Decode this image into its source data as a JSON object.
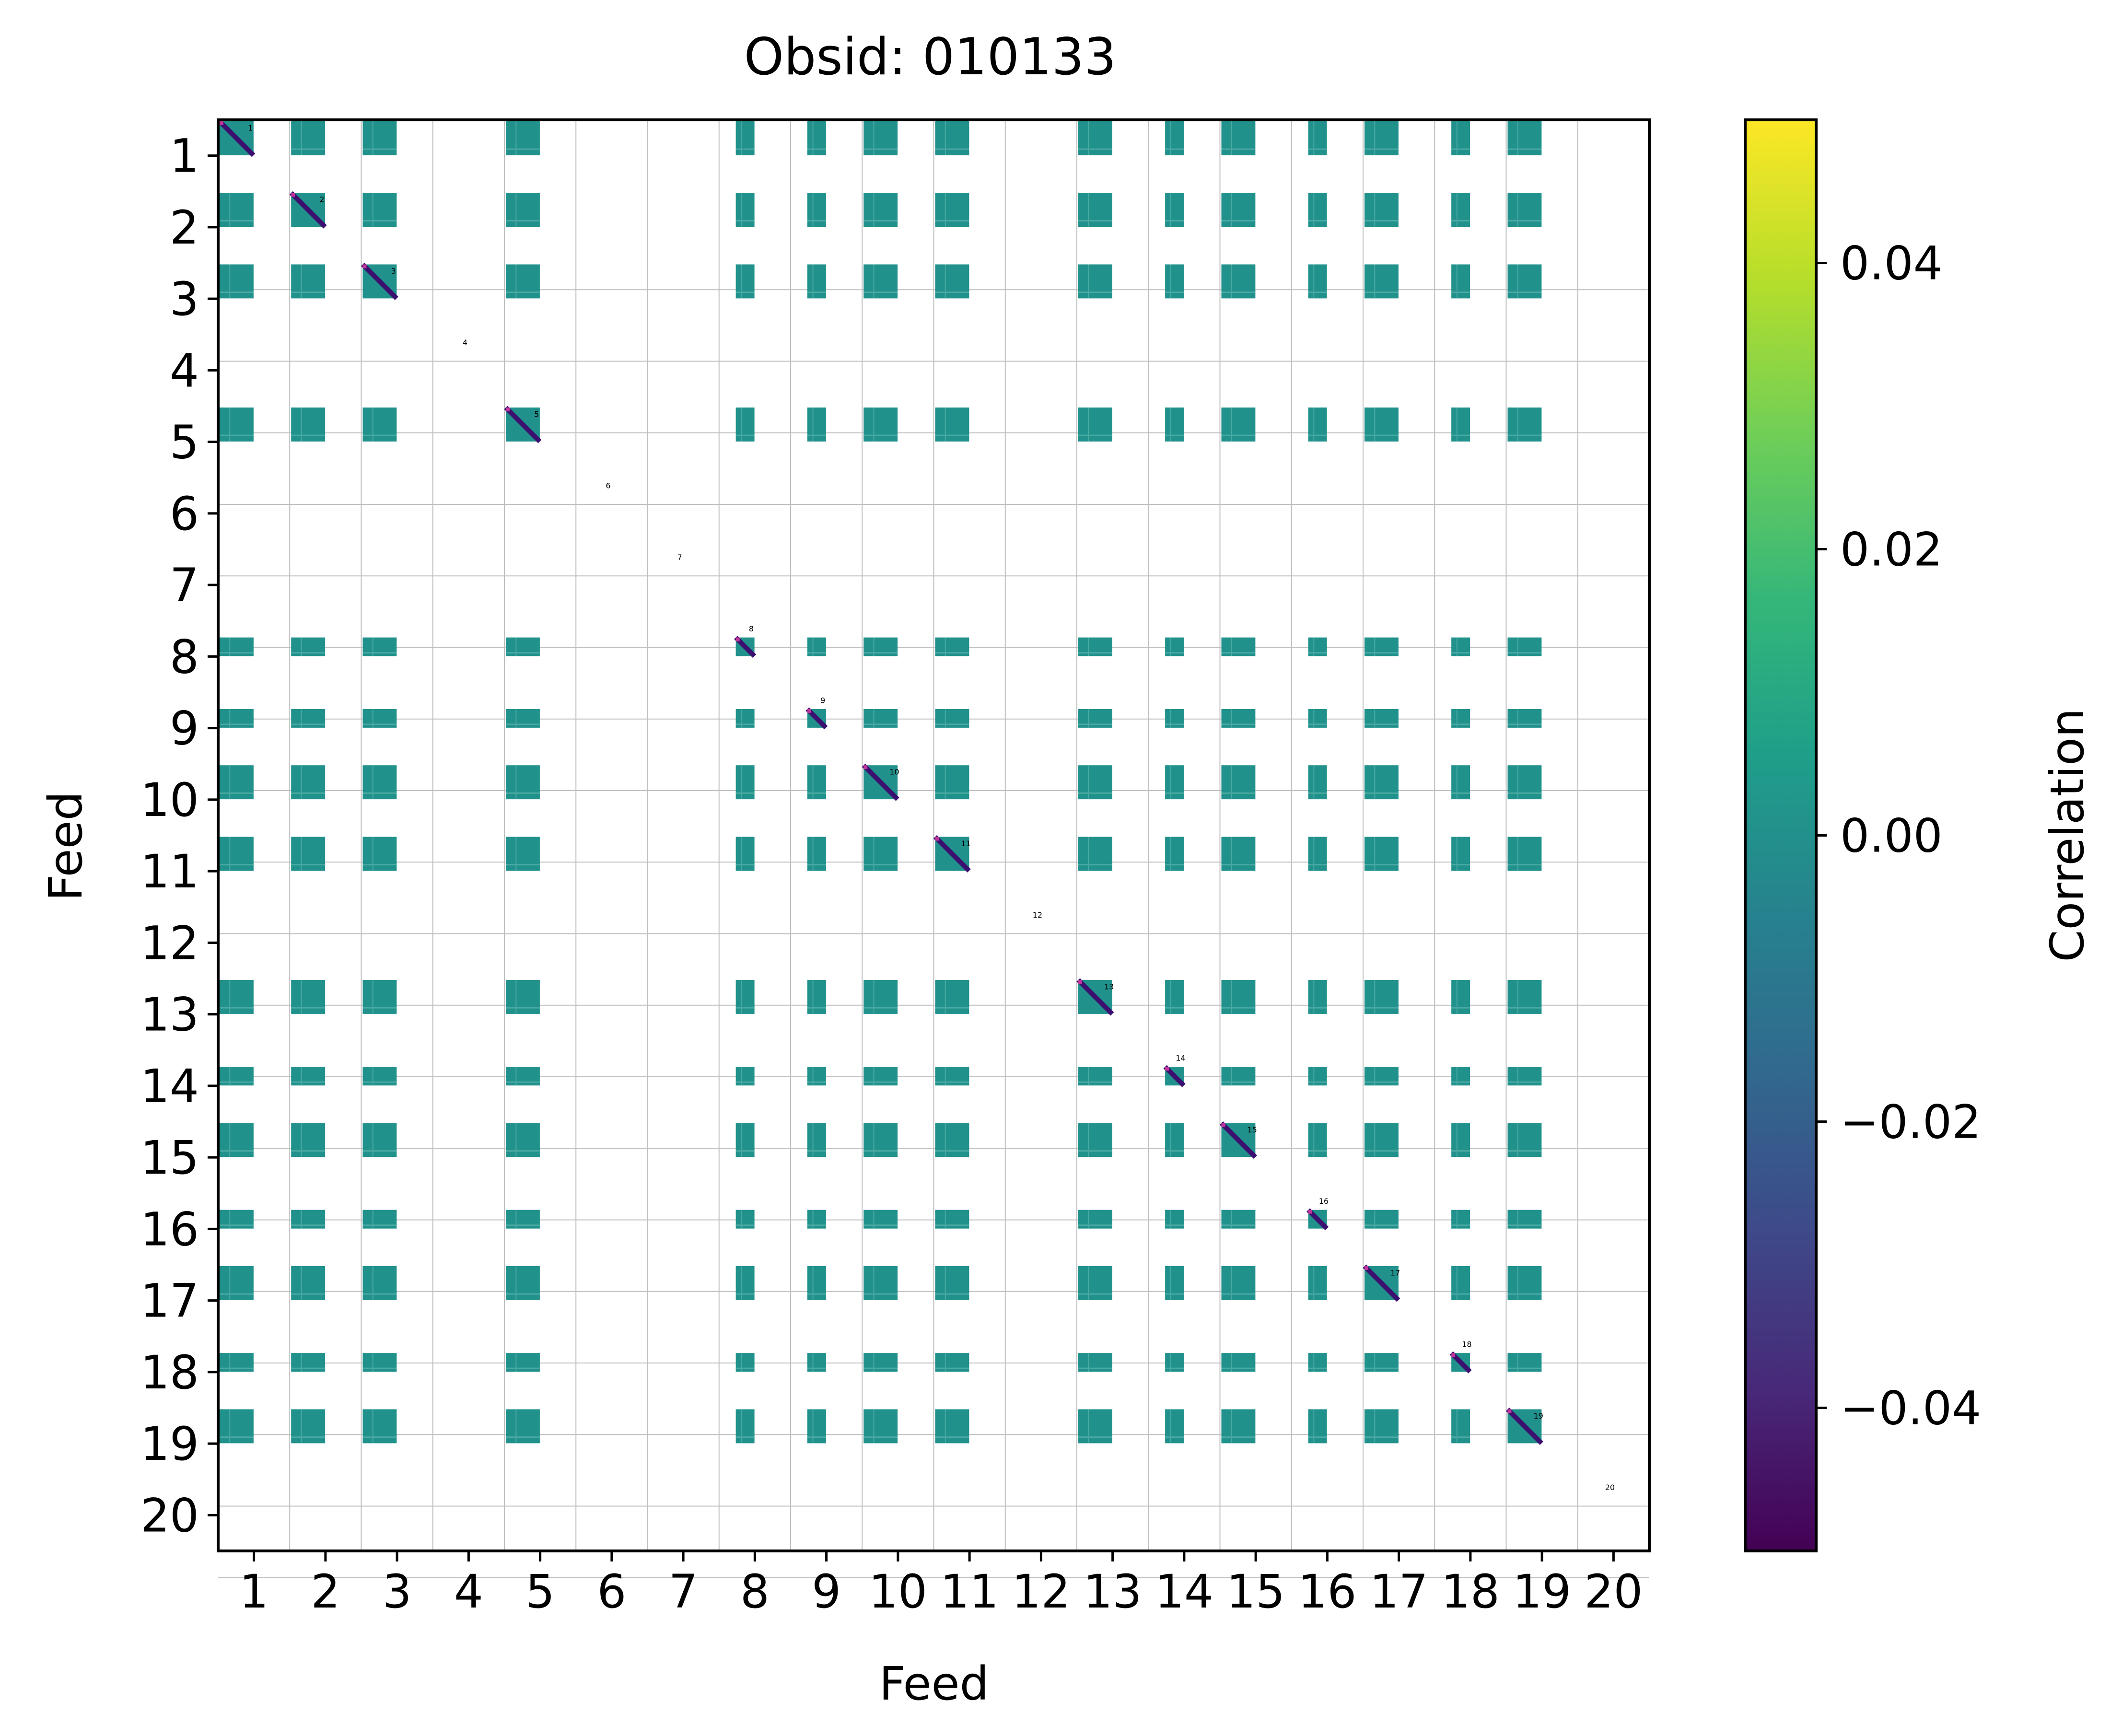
{
  "chart_data": {
    "type": "heatmap",
    "title": "Obsid: 010133",
    "xlabel": "Feed",
    "ylabel": "Feed",
    "x_ticks": [
      "1",
      "2",
      "3",
      "4",
      "5",
      "6",
      "7",
      "8",
      "9",
      "10",
      "11",
      "12",
      "13",
      "14",
      "15",
      "16",
      "17",
      "18",
      "19",
      "20"
    ],
    "y_ticks": [
      "1",
      "2",
      "3",
      "4",
      "5",
      "6",
      "7",
      "8",
      "9",
      "10",
      "11",
      "12",
      "13",
      "14",
      "15",
      "16",
      "17",
      "18",
      "19",
      "20"
    ],
    "block_labels": [
      "1",
      "2",
      "3",
      "4",
      "5",
      "6",
      "7",
      "8",
      "9",
      "10",
      "11",
      "12",
      "13",
      "14",
      "15",
      "16",
      "17",
      "18",
      "19",
      "20"
    ],
    "feeds": [
      1,
      2,
      3,
      4,
      5,
      6,
      7,
      8,
      9,
      10,
      11,
      12,
      13,
      14,
      15,
      16,
      17,
      18,
      19,
      20
    ],
    "empty_feeds": [
      4,
      6,
      7,
      12,
      20
    ],
    "partial_feeds": [
      8,
      9,
      14,
      16,
      18
    ],
    "diagonal_value": -0.05,
    "offdiagonal_value": 0.0,
    "colorbar": {
      "label": "Correlation",
      "colormap": "viridis",
      "vmin": -0.05,
      "vmax": 0.05,
      "ticks": [
        "0.04",
        "0.02",
        "0.00",
        "−0.02",
        "−0.04"
      ],
      "tick_values": [
        0.04,
        0.02,
        0.0,
        -0.02,
        -0.04
      ]
    }
  },
  "colors": {
    "block": "#21918c",
    "block_light": "#4aa9a2",
    "diagonal": "#3b0f70",
    "diagonal_alt": "#c0379b",
    "grid": "#bfbfbf",
    "background": "#ffffff"
  }
}
